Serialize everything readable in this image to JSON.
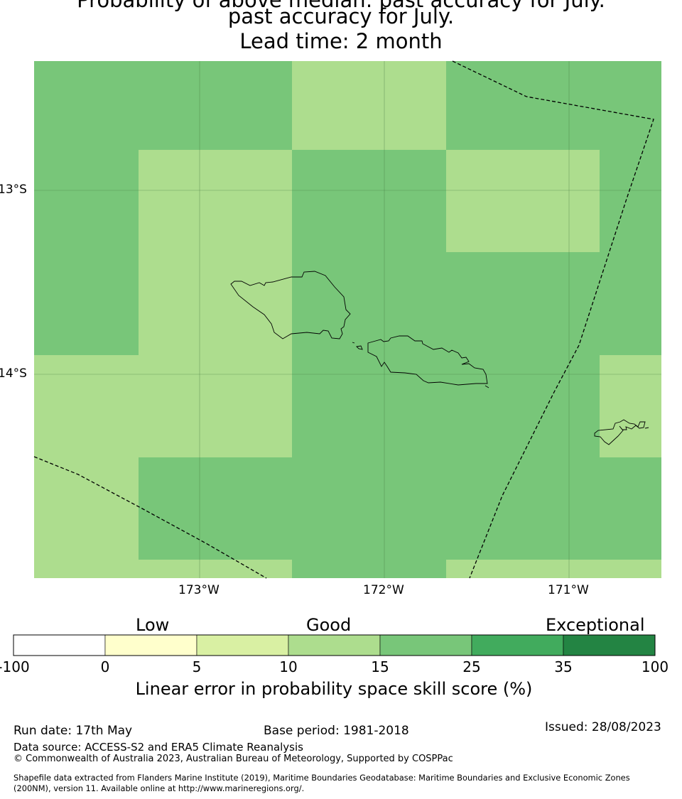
{
  "title": {
    "line1": "Probability of above median: past accuracy for July.",
    "line2": "past accuracy for July.",
    "line3": "Lead time: 2 month"
  },
  "map": {
    "lat_labels": [
      "13°S",
      "14°S"
    ],
    "lon_labels": [
      "173°W",
      "172°W",
      "171°W"
    ],
    "grid": {
      "lon_edges": [
        -173.9,
        -173.33,
        -172.5,
        -171.66,
        -170.83,
        -170.5
      ],
      "lat_edges": [
        -12.7,
        -13.18,
        -13.73,
        -14.29,
        -14.84,
        -15.2
      ],
      "cells": [
        [
          "25",
          "25",
          "15",
          "25",
          "25"
        ],
        [
          "25",
          "15",
          "25",
          "15",
          "25"
        ],
        [
          "25",
          "15",
          "25",
          "25",
          "25"
        ],
        [
          "15",
          "15",
          "25",
          "25",
          "15"
        ],
        [
          "15",
          "25",
          "25",
          "25",
          "25"
        ],
        [
          "15",
          "15",
          "25",
          "15",
          "15"
        ]
      ]
    }
  },
  "legend": {
    "categories": [
      {
        "label": "Low"
      },
      {
        "label": "Good"
      },
      {
        "label": "Exceptional"
      }
    ],
    "bins": [
      {
        "from": "-100",
        "to": "0",
        "color": "#ffffff"
      },
      {
        "from": "0",
        "to": "5",
        "color": "#ffffcc"
      },
      {
        "from": "5",
        "to": "10",
        "color": "#d9f0a3"
      },
      {
        "from": "10",
        "to": "15",
        "color": "#addd8e"
      },
      {
        "from": "15",
        "to": "25",
        "color": "#78c679"
      },
      {
        "from": "25",
        "to": "35",
        "color": "#41ab5d"
      },
      {
        "from": "35",
        "to": "100",
        "color": "#238443"
      }
    ],
    "ticks": [
      "-100",
      "0",
      "5",
      "10",
      "15",
      "25",
      "35",
      "100"
    ],
    "label": "Linear error in probability space skill score (%)"
  },
  "footer": {
    "run_date": "Run date: 17th May",
    "base_period": "Base period: 1981-2018",
    "issued": "Issued: 28/08/2023",
    "data_source": "Data source: ACCESS-S2 and ERA5 Climate Reanalysis",
    "copyright": "© Commonwealth of Australia 2023, Australian Bureau of Meteorology, Supported by COSPPac",
    "shapefile_1": "Shapefile data extracted from Flanders Marine Institute (2019), Maritime Boundaries Geodatabase: Maritime Boundaries and Exclusive Economic Zones",
    "shapefile_2": "(200NM), version 11. Available online at http://www.marineregions.org/."
  }
}
